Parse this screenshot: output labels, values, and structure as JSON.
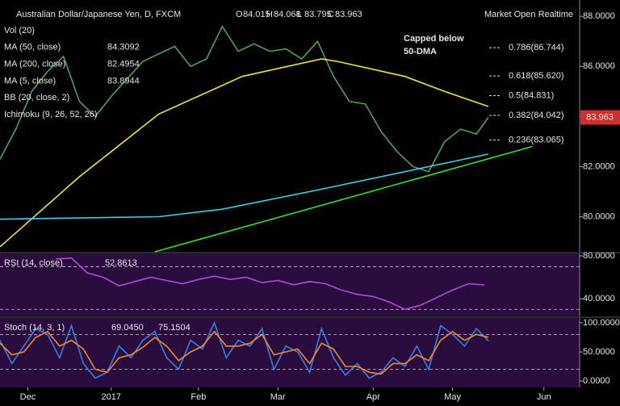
{
  "chart_data": [
    {
      "type": "line",
      "title": "Australian Dollar/Japanese Yen, D, FXCM",
      "quote": [
        {
          "label": "O",
          "value": 84.015
        },
        {
          "label": "H",
          "value": 84.068
        },
        {
          "label": "L",
          "value": 83.795
        },
        {
          "label": "C",
          "value": 83.963
        }
      ],
      "status": "Market Open Realtime",
      "legend": [
        {
          "name": "Vol (20)"
        },
        {
          "name": "MA (50, close)",
          "value": 84.3092,
          "color": "#f2e33a"
        },
        {
          "name": "MA (200, close)",
          "value": 82.4954,
          "color": "#3fd0e6"
        },
        {
          "name": "MA (5, close)",
          "value": 83.8944,
          "color": "#3fbf3f"
        },
        {
          "name": "BB (20, close, 2)"
        },
        {
          "name": "Ichimoku (9, 26, 52, 26)"
        }
      ],
      "annotation": [
        "Capped below",
        "50-DMA"
      ],
      "last_price": 83.963,
      "fib_levels": [
        {
          "value": 86.744,
          "label": "0.786(86.744)"
        },
        {
          "value": 85.62,
          "label": "0.618(85.620)"
        },
        {
          "value": 84.831,
          "label": "0.5(84.831)"
        },
        {
          "value": 84.042,
          "label": "0.382(84.042)"
        },
        {
          "value": 83.065,
          "label": "0.236(83.065)"
        }
      ],
      "xlim": [
        0,
        146
      ],
      "xticks": [
        {
          "value": 7,
          "label": "Dec"
        },
        {
          "value": 28,
          "label": "2017"
        },
        {
          "value": 50,
          "label": "Feb"
        },
        {
          "value": 70,
          "label": "Mar"
        },
        {
          "value": 94,
          "label": "Apr"
        },
        {
          "value": 114,
          "label": "May"
        },
        {
          "value": 137,
          "label": "Jun"
        }
      ],
      "ylim": [
        78.6,
        88.65
      ],
      "yticks": [
        {
          "value": 80,
          "label": "80.0000"
        },
        {
          "value": 82,
          "label": "82.0000"
        },
        {
          "value": 84,
          "label": "84.0000"
        },
        {
          "value": 86,
          "label": "86.0000"
        },
        {
          "value": 88,
          "label": "88.0000"
        }
      ],
      "series": [
        {
          "color": "#4caf50",
          "x": [
            0,
            4,
            8,
            12,
            16,
            20,
            24,
            28,
            32,
            36,
            40,
            44,
            48,
            52,
            56,
            60,
            64,
            68,
            72,
            76,
            80,
            84,
            88,
            92,
            96,
            100,
            104,
            108,
            112,
            116,
            120,
            123
          ],
          "values": [
            82.3,
            83.5,
            85.0,
            85.8,
            86.4,
            84.6,
            84.0,
            84.8,
            85.5,
            86.2,
            86.5,
            86.8,
            86.0,
            86.3,
            87.6,
            86.6,
            86.9,
            86.6,
            86.7,
            86.3,
            87.0,
            85.6,
            84.6,
            84.5,
            83.4,
            82.6,
            82.0,
            81.8,
            83.0,
            83.5,
            83.3,
            83.963
          ]
        },
        {
          "color": "#f2e33a",
          "x": [
            0,
            20,
            40,
            61,
            81,
            85,
            102,
            112,
            123
          ],
          "values": [
            78.8,
            81.6,
            84.1,
            85.6,
            86.3,
            86.2,
            85.6,
            85.0,
            84.4
          ]
        },
        {
          "color": "#3fd0e6",
          "x": [
            0,
            40,
            56,
            81,
            102,
            123
          ],
          "values": [
            79.9,
            80.0,
            80.3,
            81.1,
            81.8,
            82.5
          ]
        },
        {
          "color": "#33e033",
          "x": [
            39,
            134
          ],
          "values": [
            78.6,
            82.8
          ]
        }
      ]
    },
    {
      "type": "line",
      "legend": [
        {
          "name": "RSI (14, close)",
          "value": 52.8613,
          "color": "#b04bd6"
        }
      ],
      "ylim": [
        23.4,
        82.3
      ],
      "yticks": [
        {
          "value": 80,
          "label": "80.0000"
        },
        {
          "value": 40,
          "label": "40.0000"
        }
      ],
      "levels": [
        70,
        30
      ],
      "series": [
        {
          "color": "#b04bd6",
          "x": [
            14,
            18,
            22,
            26,
            30,
            34,
            38,
            42,
            46,
            50,
            54,
            58,
            62,
            66,
            70,
            74,
            78,
            82,
            86,
            90,
            94,
            98,
            102,
            106,
            110,
            114,
            118,
            122
          ],
          "values": [
            77,
            78,
            64,
            60,
            52,
            56,
            60,
            57,
            54,
            58,
            61,
            58,
            60,
            55,
            57,
            53,
            56,
            54,
            48,
            44,
            42,
            37,
            30,
            34,
            41,
            48,
            54,
            52.8613
          ]
        }
      ]
    },
    {
      "type": "line",
      "legend": [
        {
          "name": "Stoch (14, 3, 1)"
        },
        {
          "value": 69.045,
          "label": "69.0450",
          "color": "#3a7fe0"
        },
        {
          "value": 75.1504,
          "label": "75.1504",
          "color": "#f08a30"
        }
      ],
      "ylim": [
        -11,
        108.2
      ],
      "yticks": [
        {
          "value": 100,
          "label": "100.0000"
        },
        {
          "value": 50,
          "label": "50.0000"
        },
        {
          "value": 0,
          "label": "0.0000"
        }
      ],
      "levels": [
        80,
        20
      ],
      "series": [
        {
          "color": "#3a7fe0",
          "x": [
            0,
            3,
            6,
            9,
            12,
            15,
            18,
            21,
            24,
            27,
            30,
            33,
            36,
            39,
            42,
            45,
            48,
            51,
            54,
            57,
            60,
            63,
            66,
            69,
            72,
            75,
            78,
            81,
            84,
            87,
            90,
            93,
            96,
            99,
            102,
            105,
            108,
            111,
            114,
            117,
            120,
            123
          ],
          "values": [
            70,
            30,
            60,
            90,
            80,
            40,
            95,
            30,
            5,
            15,
            60,
            40,
            70,
            85,
            40,
            20,
            70,
            55,
            100,
            40,
            70,
            60,
            90,
            20,
            60,
            50,
            15,
            90,
            40,
            10,
            30,
            5,
            15,
            40,
            25,
            60,
            20,
            95,
            80,
            60,
            90,
            69.045
          ]
        },
        {
          "color": "#f08a30",
          "x": [
            0,
            3,
            6,
            9,
            12,
            15,
            18,
            21,
            24,
            27,
            30,
            33,
            36,
            39,
            42,
            45,
            48,
            51,
            54,
            57,
            60,
            63,
            66,
            69,
            72,
            75,
            78,
            81,
            84,
            87,
            90,
            93,
            96,
            99,
            102,
            105,
            108,
            111,
            114,
            117,
            120,
            123
          ],
          "values": [
            65,
            45,
            50,
            75,
            85,
            60,
            70,
            55,
            20,
            15,
            40,
            45,
            58,
            75,
            60,
            35,
            50,
            60,
            85,
            60,
            60,
            65,
            80,
            45,
            50,
            55,
            30,
            65,
            55,
            25,
            25,
            15,
            12,
            30,
            30,
            45,
            35,
            70,
            85,
            70,
            80,
            75.1504
          ]
        }
      ]
    }
  ]
}
